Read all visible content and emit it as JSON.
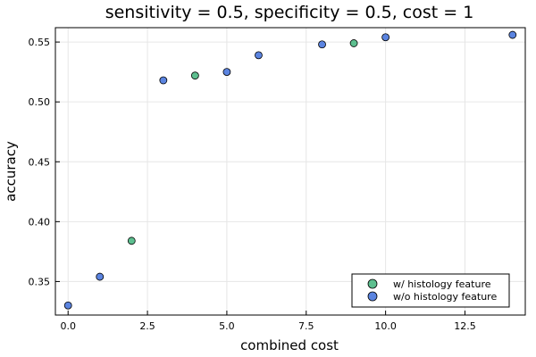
{
  "chart_data": {
    "type": "scatter",
    "title": "sensitivity = 0.5, specificity = 0.5, cost = 1",
    "xlabel": "combined cost",
    "ylabel": "accuracy",
    "xlim": [
      -0.4,
      14.4
    ],
    "ylim": [
      0.322,
      0.562
    ],
    "xticks": [
      0.0,
      2.5,
      5.0,
      7.5,
      10.0,
      12.5
    ],
    "xtick_labels": [
      "0.0",
      "2.5",
      "5.0",
      "7.5",
      "10.0",
      "12.5"
    ],
    "yticks": [
      0.35,
      0.4,
      0.45,
      0.5,
      0.55
    ],
    "ytick_labels": [
      "0.35",
      "0.40",
      "0.45",
      "0.50",
      "0.55"
    ],
    "grid": true,
    "legend_position": "bottom-right",
    "series": [
      {
        "name": "w/ histology feature",
        "color": "#5dbf8f",
        "x": [
          2,
          4,
          9
        ],
        "y": [
          0.384,
          0.522,
          0.549
        ]
      },
      {
        "name": "w/o histology feature",
        "color": "#5b84e0",
        "x": [
          0,
          1,
          3,
          5,
          6,
          8,
          10,
          14
        ],
        "y": [
          0.33,
          0.354,
          0.518,
          0.525,
          0.539,
          0.548,
          0.554,
          0.556
        ]
      }
    ]
  }
}
